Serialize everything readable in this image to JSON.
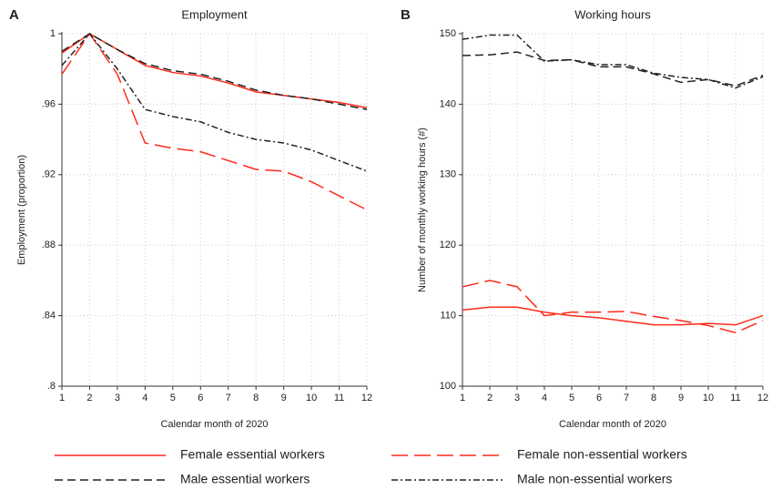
{
  "chart_data": [
    {
      "type": "line",
      "panel_label": "A",
      "title": "Employment",
      "xlabel": "Calendar month of 2020",
      "ylabel": "Employment (proportion)",
      "x": [
        1,
        2,
        3,
        4,
        5,
        6,
        7,
        8,
        9,
        10,
        11,
        12
      ],
      "xlim": [
        1,
        12
      ],
      "xticks": [
        1,
        2,
        3,
        4,
        5,
        6,
        7,
        8,
        9,
        10,
        11,
        12
      ],
      "ylim": [
        0.8,
        1
      ],
      "yticks": [
        {
          "value": 0.8,
          "label": ".8"
        },
        {
          "value": 0.84,
          "label": ".84"
        },
        {
          "value": 0.88,
          "label": ".88"
        },
        {
          "value": 0.92,
          "label": ".92"
        },
        {
          "value": 0.96,
          "label": ".96"
        },
        1
      ],
      "grid": true,
      "series": [
        {
          "name": "Female essential workers",
          "color": "#ff2a1a",
          "dash": "solid",
          "values": [
            0.989,
            1,
            0.991,
            0.982,
            0.978,
            0.976,
            0.972,
            0.967,
            0.965,
            0.963,
            0.961,
            0.958
          ]
        },
        {
          "name": "Female non-essential workers",
          "color": "#ff2a1a",
          "dash": "long",
          "values": [
            0.977,
            1,
            0.977,
            0.938,
            0.935,
            0.933,
            0.928,
            0.923,
            0.922,
            0.916,
            0.908,
            0.9
          ]
        },
        {
          "name": "Male essential workers",
          "color": "#222222",
          "dash": "dash",
          "values": [
            0.99,
            1,
            0.991,
            0.983,
            0.979,
            0.977,
            0.973,
            0.968,
            0.965,
            0.963,
            0.96,
            0.957
          ]
        },
        {
          "name": "Male non-essential workers",
          "color": "#222222",
          "dash": "dashdot",
          "values": [
            0.982,
            1,
            0.98,
            0.957,
            0.953,
            0.95,
            0.944,
            0.94,
            0.938,
            0.934,
            0.928,
            0.922
          ]
        }
      ]
    },
    {
      "type": "line",
      "panel_label": "B",
      "title": "Working hours",
      "xlabel": "Calendar month of 2020",
      "ylabel": "Number of monthly working hours (#)",
      "x": [
        1,
        2,
        3,
        4,
        5,
        6,
        7,
        8,
        9,
        10,
        11,
        12
      ],
      "xlim": [
        1,
        12
      ],
      "xticks": [
        1,
        2,
        3,
        4,
        5,
        6,
        7,
        8,
        9,
        10,
        11,
        12
      ],
      "ylim": [
        100,
        150
      ],
      "yticks": [
        100,
        110,
        120,
        130,
        140,
        150
      ],
      "grid": true,
      "series": [
        {
          "color": "#ff2a1a",
          "dash": "solid",
          "values": [
            110.8,
            111.2,
            111.2,
            110.5,
            110.0,
            109.7,
            109.2,
            108.7,
            108.7,
            108.9,
            108.7,
            110.0
          ]
        },
        {
          "color": "#ff2a1a",
          "dash": "long",
          "values": [
            114.1,
            115.0,
            114.1,
            110.0,
            110.5,
            110.5,
            110.6,
            109.9,
            109.3,
            108.6,
            107.6,
            109.3
          ]
        },
        {
          "color": "#222222",
          "dash": "dash",
          "values": [
            146.9,
            147.0,
            147.4,
            146.2,
            146.3,
            145.3,
            145.3,
            144.3,
            143.1,
            143.5,
            142.6,
            144.1
          ]
        },
        {
          "color": "#222222",
          "dash": "dashdot",
          "values": [
            149.2,
            149.8,
            149.8,
            146.1,
            146.3,
            145.6,
            145.6,
            144.4,
            143.8,
            143.5,
            142.3,
            143.9
          ]
        }
      ]
    }
  ]
}
